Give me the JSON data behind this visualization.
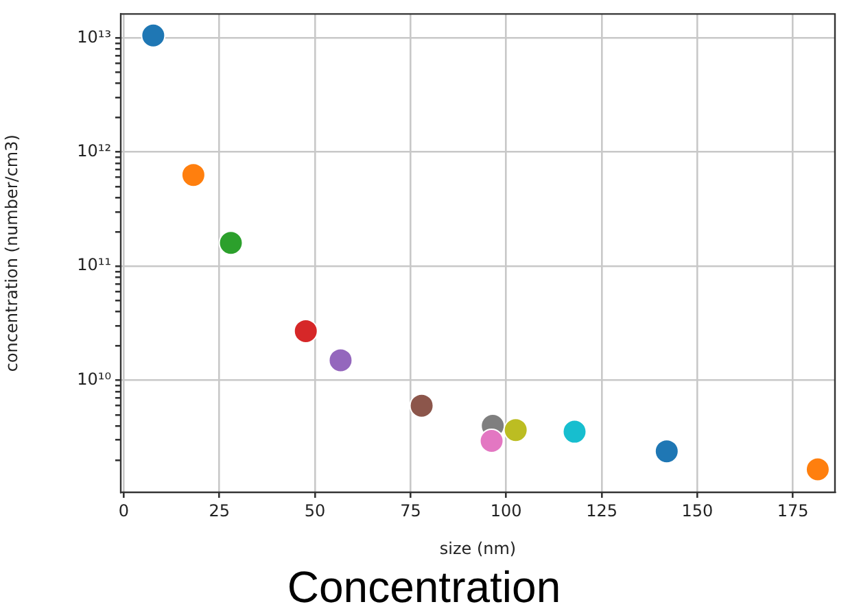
{
  "chart_data": {
    "type": "scatter",
    "title": "Concentration",
    "xlabel": "size (nm)",
    "ylabel": "concentration (number/cm3)",
    "x": [
      7.7,
      18.2,
      28,
      47.6,
      56.7,
      77.9,
      96.5,
      96.2,
      102.5,
      117.9,
      142,
      181.5
    ],
    "values": [
      10500000000000.0,
      630000000000.0,
      160000000000.0,
      27000000000.0,
      15000000000.0,
      6000000000.0,
      4000000000.0,
      2950000000.0,
      3670000000.0,
      3550000000.0,
      2390000000.0,
      1660000000.0
    ],
    "colors": [
      "#1f77b4",
      "#ff7f0e",
      "#2ca02c",
      "#d62728",
      "#9467bd",
      "#8c564b",
      "#7f7f7f",
      "#e377c2",
      "#bcbd22",
      "#17becf",
      "#1f77b4",
      "#ff7f0e"
    ],
    "marker": "circle",
    "log": "y",
    "grid": true,
    "xlim": [
      -0.8,
      186
    ],
    "xticks": [
      0,
      25,
      50,
      75,
      100,
      125,
      150,
      175
    ],
    "ylim": [
      1045000000.0,
      16200000000000.0
    ],
    "yticks": [
      {
        "value": 2000000000.0,
        "label": null
      },
      {
        "value": 3000000000.0,
        "label": null
      },
      {
        "value": 4000000000.0,
        "label": null
      },
      {
        "value": 5000000000.0,
        "label": null
      },
      {
        "value": 6000000000.0,
        "label": null
      },
      {
        "value": 7000000000.0,
        "label": null
      },
      {
        "value": 8000000000.0,
        "label": null
      },
      {
        "value": 9000000000.0,
        "label": null
      },
      {
        "value": 10000000000.0,
        "label": "10¹⁰"
      },
      {
        "value": 20000000000.0,
        "label": null
      },
      {
        "value": 30000000000.0,
        "label": null
      },
      {
        "value": 40000000000.0,
        "label": null
      },
      {
        "value": 50000000000.0,
        "label": null
      },
      {
        "value": 60000000000.0,
        "label": null
      },
      {
        "value": 70000000000.0,
        "label": null
      },
      {
        "value": 80000000000.0,
        "label": null
      },
      {
        "value": 90000000000.0,
        "label": null
      },
      {
        "value": 100000000000.0,
        "label": "10¹¹"
      },
      {
        "value": 200000000000.0,
        "label": null
      },
      {
        "value": 300000000000.0,
        "label": null
      },
      {
        "value": 400000000000.0,
        "label": null
      },
      {
        "value": 500000000000.0,
        "label": null
      },
      {
        "value": 600000000000.0,
        "label": null
      },
      {
        "value": 700000000000.0,
        "label": null
      },
      {
        "value": 800000000000.0,
        "label": null
      },
      {
        "value": 900000000000.0,
        "label": null
      },
      {
        "value": 1000000000000.0,
        "label": "10¹²"
      },
      {
        "value": 2000000000000.0,
        "label": null
      },
      {
        "value": 3000000000000.0,
        "label": null
      },
      {
        "value": 4000000000000.0,
        "label": null
      },
      {
        "value": 5000000000000.0,
        "label": null
      },
      {
        "value": 6000000000000.0,
        "label": null
      },
      {
        "value": 7000000000000.0,
        "label": null
      },
      {
        "value": 8000000000000.0,
        "label": null
      },
      {
        "value": 9000000000000.0,
        "label": null
      },
      {
        "value": 10000000000000.0,
        "label": "10¹³"
      }
    ]
  }
}
